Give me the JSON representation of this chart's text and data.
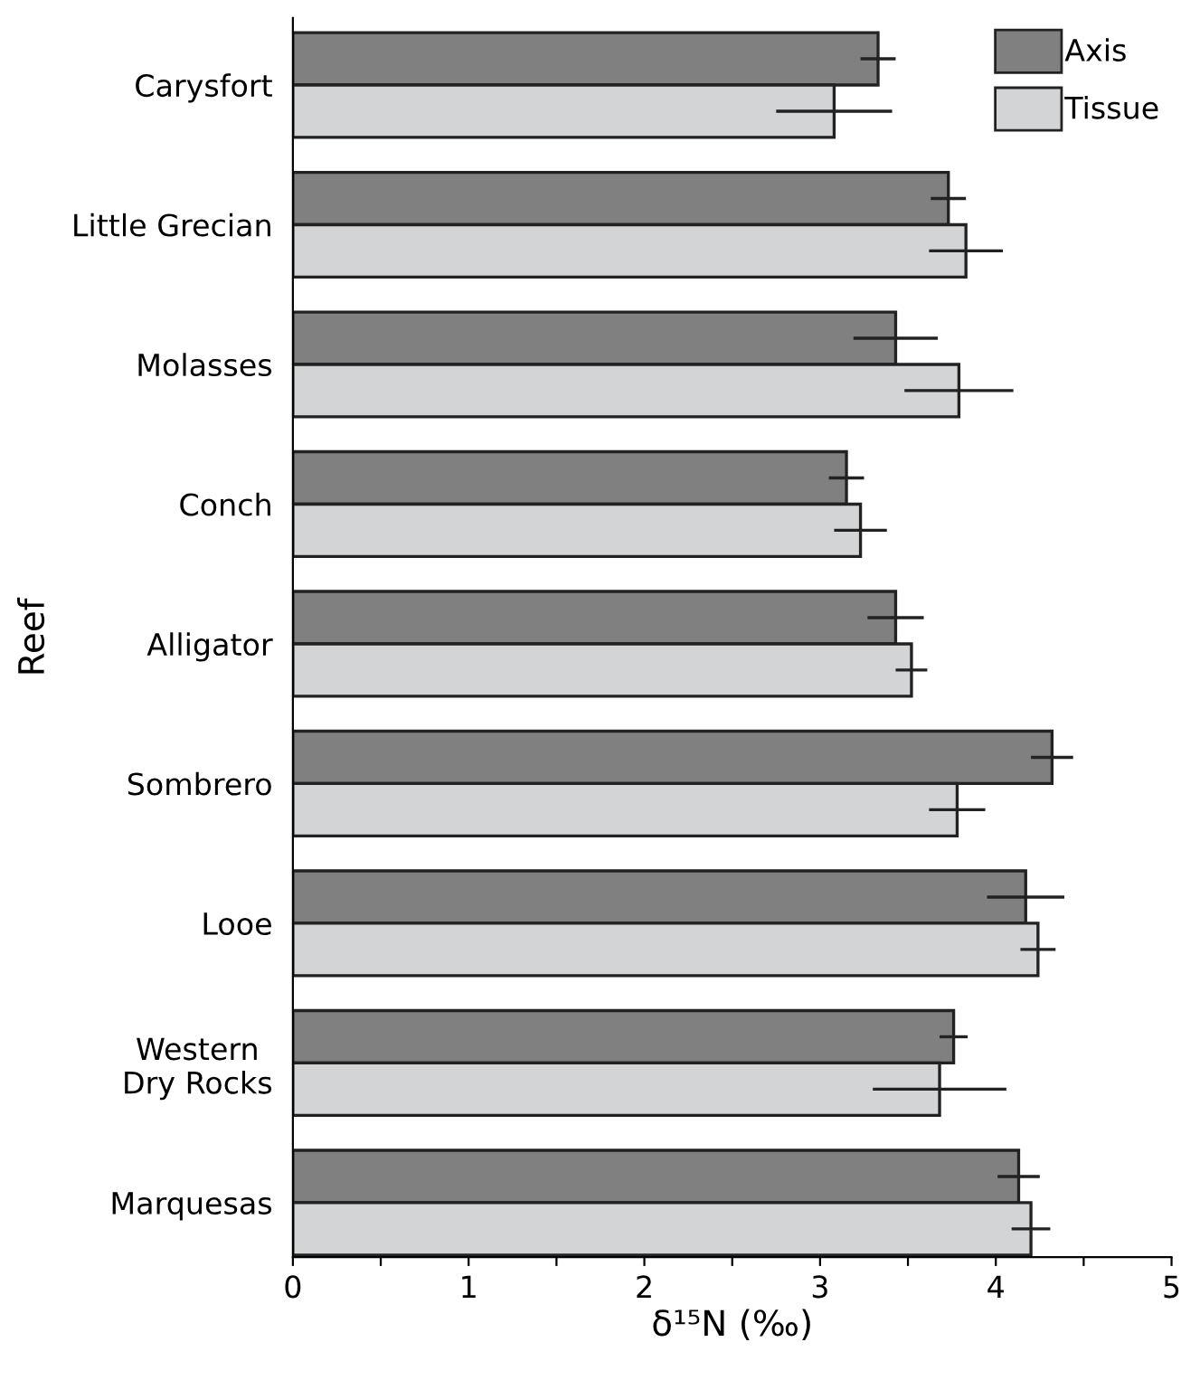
{
  "chart_data": {
    "type": "bar",
    "orientation": "horizontal",
    "ylabel": "Reef",
    "xlabel": "δ¹⁵N (‰)",
    "categories": [
      "Carysfort",
      "Little Grecian",
      "Molasses",
      "Conch",
      "Alligator",
      "Sombrero",
      "Looe",
      "Western\nDry Rocks",
      "Marquesas"
    ],
    "series": [
      {
        "name": "Axis",
        "color": "#808080",
        "values": [
          3.33,
          3.73,
          3.43,
          3.15,
          3.43,
          4.32,
          4.17,
          3.76,
          4.13
        ],
        "errors": [
          0.1,
          0.1,
          0.24,
          0.1,
          0.16,
          0.12,
          0.22,
          0.08,
          0.12
        ]
      },
      {
        "name": "Tissue",
        "color": "#d3d4d6",
        "values": [
          3.08,
          3.83,
          3.79,
          3.23,
          3.52,
          3.78,
          4.24,
          3.68,
          4.2
        ],
        "errors": [
          0.33,
          0.21,
          0.31,
          0.15,
          0.09,
          0.16,
          0.1,
          0.38,
          0.11
        ]
      }
    ],
    "xlim": [
      0,
      5
    ],
    "xticks": [
      0,
      {
        "value": 0.5,
        "label": null
      },
      1,
      {
        "value": 1.5,
        "label": null
      },
      2,
      {
        "value": 2.5,
        "label": null
      },
      3,
      {
        "value": 3.5,
        "label": null
      },
      4,
      {
        "value": 4.5,
        "label": null
      },
      5
    ],
    "legend": "top right",
    "grid": false
  }
}
